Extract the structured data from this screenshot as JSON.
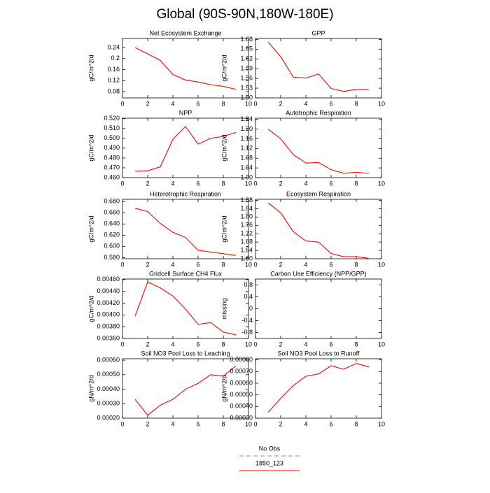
{
  "title": "Global (90S-90N,180W-180E)",
  "legend": [
    {
      "name": "No Obs",
      "color": "#8080ff",
      "dash": true
    },
    {
      "name": "1850_123",
      "color": "#ff0000",
      "dash": false
    }
  ],
  "chart_data": [
    {
      "type": "line",
      "title": "Net Ecosystem Exchange",
      "ylabel": "gC/m^2/d",
      "color": "#ff0000",
      "x": [
        1,
        2,
        3,
        4,
        5,
        6,
        7,
        8,
        9
      ],
      "values": [
        0.24,
        0.217,
        0.193,
        0.142,
        0.122,
        0.115,
        0.105,
        0.099,
        0.088
      ],
      "xlim": [
        0,
        10
      ],
      "xticks": [
        0,
        2,
        4,
        6,
        8,
        10
      ],
      "ylim": [
        0.057,
        0.273
      ],
      "yticks": [
        0.08,
        0.12,
        0.16,
        0.2,
        0.24
      ]
    },
    {
      "type": "line",
      "title": "GPP",
      "ylabel": "gC/m^2/d",
      "color": "#ff0000",
      "x": [
        1,
        2,
        3,
        4,
        5,
        6,
        7,
        8,
        9
      ],
      "values": [
        1.672,
        1.627,
        1.564,
        1.561,
        1.574,
        1.529,
        1.52,
        1.526,
        1.526
      ],
      "xlim": [
        0,
        10
      ],
      "xticks": [
        0,
        2,
        4,
        6,
        8,
        10
      ],
      "ylim": [
        1.5,
        1.683
      ],
      "yticks": [
        {
          "value": 1.5,
          "label": "1.50"
        },
        1.53,
        1.56,
        1.59,
        1.62,
        1.65,
        1.68
      ]
    },
    {
      "type": "line",
      "title": "NPP",
      "ylabel": "gC/m^2/d",
      "color": "#ff0000",
      "x": [
        1,
        2,
        3,
        4,
        5,
        6,
        7,
        8,
        9
      ],
      "values": [
        0.4665,
        0.467,
        0.471,
        0.499,
        0.512,
        0.494,
        0.5,
        0.502,
        0.506
      ],
      "xlim": [
        0,
        10
      ],
      "xticks": [
        0,
        2,
        4,
        6,
        8,
        10
      ],
      "ylim": [
        0.46,
        0.5205
      ],
      "yticks": [
        {
          "value": 0.46,
          "label": "0.460"
        },
        {
          "value": 0.47,
          "label": "0.470"
        },
        {
          "value": 0.48,
          "label": "0.480"
        },
        {
          "value": 0.49,
          "label": "0.490"
        },
        {
          "value": 0.5,
          "label": "0.500"
        },
        {
          "value": 0.51,
          "label": "0.510"
        },
        {
          "value": 0.52,
          "label": "0.520"
        }
      ]
    },
    {
      "type": "line",
      "title": "Autotrophic Respiration",
      "ylabel": "gC/m^2/d",
      "color": "#ff0000",
      "x": [
        1,
        2,
        3,
        4,
        5,
        6,
        7,
        8,
        9
      ],
      "values": [
        1.2,
        1.16,
        1.095,
        1.06,
        1.062,
        1.033,
        1.018,
        1.022,
        1.018
      ],
      "xlim": [
        0,
        10
      ],
      "xticks": [
        0,
        2,
        4,
        6,
        8,
        10
      ],
      "ylim": [
        1.0,
        1.245
      ],
      "yticks": [
        {
          "value": 1.0,
          "label": "1.00"
        },
        1.04,
        1.08,
        1.12,
        1.16,
        {
          "value": 1.2,
          "label": "1.20"
        },
        1.24
      ]
    },
    {
      "type": "line",
      "title": "Heterotrophic Respiration",
      "ylabel": "gC/m^2/d",
      "color": "#ff0000",
      "x": [
        1,
        2,
        3,
        4,
        5,
        6,
        7,
        8,
        9
      ],
      "values": [
        0.668,
        0.662,
        0.641,
        0.625,
        0.616,
        0.593,
        0.59,
        0.587,
        0.584
      ],
      "xlim": [
        0,
        10
      ],
      "xticks": [
        0,
        2,
        4,
        6,
        8,
        10
      ],
      "ylim": [
        0.578,
        0.684
      ],
      "yticks": [
        {
          "value": 0.58,
          "label": "0.580"
        },
        {
          "value": 0.6,
          "label": "0.600"
        },
        {
          "value": 0.62,
          "label": "0.620"
        },
        {
          "value": 0.64,
          "label": "0.640"
        },
        {
          "value": 0.66,
          "label": "0.660"
        },
        {
          "value": 0.68,
          "label": "0.680"
        }
      ]
    },
    {
      "type": "line",
      "title": "Ecosystem Respiration",
      "ylabel": "gC/m^2/d",
      "color": "#ff0000",
      "x": [
        1,
        2,
        3,
        4,
        5,
        6,
        7,
        8,
        9
      ],
      "values": [
        1.868,
        1.82,
        1.73,
        1.685,
        1.68,
        1.625,
        1.61,
        1.61,
        1.602
      ],
      "xlim": [
        0,
        10
      ],
      "xticks": [
        0,
        2,
        4,
        6,
        8,
        10
      ],
      "ylim": [
        1.6,
        1.885
      ],
      "yticks": [
        {
          "value": 1.6,
          "label": "1.60"
        },
        1.64,
        1.68,
        1.72,
        1.76,
        {
          "value": 1.8,
          "label": "1.80"
        },
        1.84,
        1.88
      ]
    },
    {
      "type": "line",
      "title": "Gridcell Surface CH4 Flux",
      "ylabel": "gC/m^2/d",
      "color": "#ff0000",
      "x": [
        1,
        2,
        3,
        4,
        5,
        6,
        7,
        8,
        9
      ],
      "values": [
        0.00398,
        0.00456,
        0.00446,
        0.00432,
        0.0041,
        0.00384,
        0.00387,
        0.00371,
        0.00366
      ],
      "xlim": [
        0,
        10
      ],
      "xticks": [
        0,
        2,
        4,
        6,
        8,
        10
      ],
      "ylim": [
        0.0036,
        0.00461
      ],
      "yticks": [
        {
          "value": 0.0036,
          "label": "0.00360"
        },
        {
          "value": 0.0038,
          "label": "0.00380"
        },
        {
          "value": 0.004,
          "label": "0.00400"
        },
        {
          "value": 0.0042,
          "label": "0.00420"
        },
        {
          "value": 0.0044,
          "label": "0.00440"
        },
        {
          "value": 0.0046,
          "label": "0.00460"
        }
      ]
    },
    {
      "type": "line",
      "title": "Carbon Use Efficiency (NPP/GPP)",
      "ylabel": "missing",
      "color": "#ff0000",
      "x": [],
      "values": [],
      "xlim": [
        0,
        10
      ],
      "xticks": [
        0,
        2,
        4,
        6,
        8,
        10
      ],
      "ylim": [
        -1,
        1
      ],
      "yticks": [
        -0.8,
        -0.4,
        0,
        0.4,
        0.8
      ]
    },
    {
      "type": "line",
      "title": "Soil NO3 Pool Loss to Leaching",
      "ylabel": "gN/m^2/d",
      "color": "#ff0000",
      "x": [
        1,
        2,
        3,
        4,
        5,
        6,
        7,
        8,
        9
      ],
      "values": [
        0.00033,
        0.00022,
        0.00029,
        0.00033,
        0.0004,
        0.00044,
        0.0005,
        0.00049,
        0.00056
      ],
      "xlim": [
        0,
        10
      ],
      "xticks": [
        0,
        2,
        4,
        6,
        8,
        10
      ],
      "ylim": [
        0.0002,
        0.00061
      ],
      "yticks": [
        {
          "value": 0.0002,
          "label": "0.00020"
        },
        {
          "value": 0.0003,
          "label": "0.00030"
        },
        {
          "value": 0.0004,
          "label": "0.00040"
        },
        {
          "value": 0.0005,
          "label": "0.00050"
        },
        {
          "value": 0.0006,
          "label": "0.00060"
        }
      ]
    },
    {
      "type": "line",
      "title": "Soil NO3 Pool Loss to Runoff",
      "ylabel": "gN/m^2/d",
      "color": "#ff0000",
      "x": [
        1,
        2,
        3,
        4,
        5,
        6,
        7,
        8,
        9
      ],
      "values": [
        0.00035,
        0.00047,
        0.00058,
        0.00066,
        0.00068,
        0.00075,
        0.00072,
        0.00077,
        0.00074
      ],
      "xlim": [
        0,
        10
      ],
      "xticks": [
        0,
        2,
        4,
        6,
        8,
        10
      ],
      "ylim": [
        0.0003,
        0.00081
      ],
      "yticks": [
        {
          "value": 0.0003,
          "label": "0.00030"
        },
        {
          "value": 0.0004,
          "label": "0.00040"
        },
        {
          "value": 0.0005,
          "label": "0.00050"
        },
        {
          "value": 0.0006,
          "label": "0.00060"
        },
        {
          "value": 0.0007,
          "label": "0.00070"
        },
        {
          "value": 0.0008,
          "label": "0.00080"
        }
      ]
    }
  ]
}
